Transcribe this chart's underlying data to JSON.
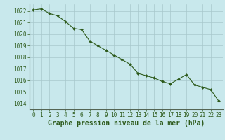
{
  "x": [
    0,
    1,
    2,
    3,
    4,
    5,
    6,
    7,
    8,
    9,
    10,
    11,
    12,
    13,
    14,
    15,
    16,
    17,
    18,
    19,
    20,
    21,
    22,
    23
  ],
  "y": [
    1022.1,
    1022.2,
    1021.8,
    1021.6,
    1021.1,
    1020.5,
    1020.4,
    1019.4,
    1019.0,
    1018.6,
    1018.2,
    1017.8,
    1017.4,
    1016.6,
    1016.4,
    1016.2,
    1015.9,
    1015.7,
    1016.1,
    1016.5,
    1015.6,
    1015.4,
    1015.2,
    1014.2
  ],
  "line_color": "#2d5a1b",
  "marker_color": "#2d5a1b",
  "bg_color": "#c8e8ec",
  "grid_color": "#a8c8cc",
  "title": "Graphe pression niveau de la mer (hPa)",
  "ylabel_ticks": [
    1014,
    1015,
    1016,
    1017,
    1018,
    1019,
    1020,
    1021,
    1022
  ],
  "ylim": [
    1013.5,
    1022.6
  ],
  "xlim": [
    -0.5,
    23.5
  ],
  "title_color": "#2d5a1b",
  "title_fontsize": 7.0,
  "tick_fontsize": 5.5,
  "tick_color": "#2d5a1b",
  "axis_left_color": "#556655"
}
